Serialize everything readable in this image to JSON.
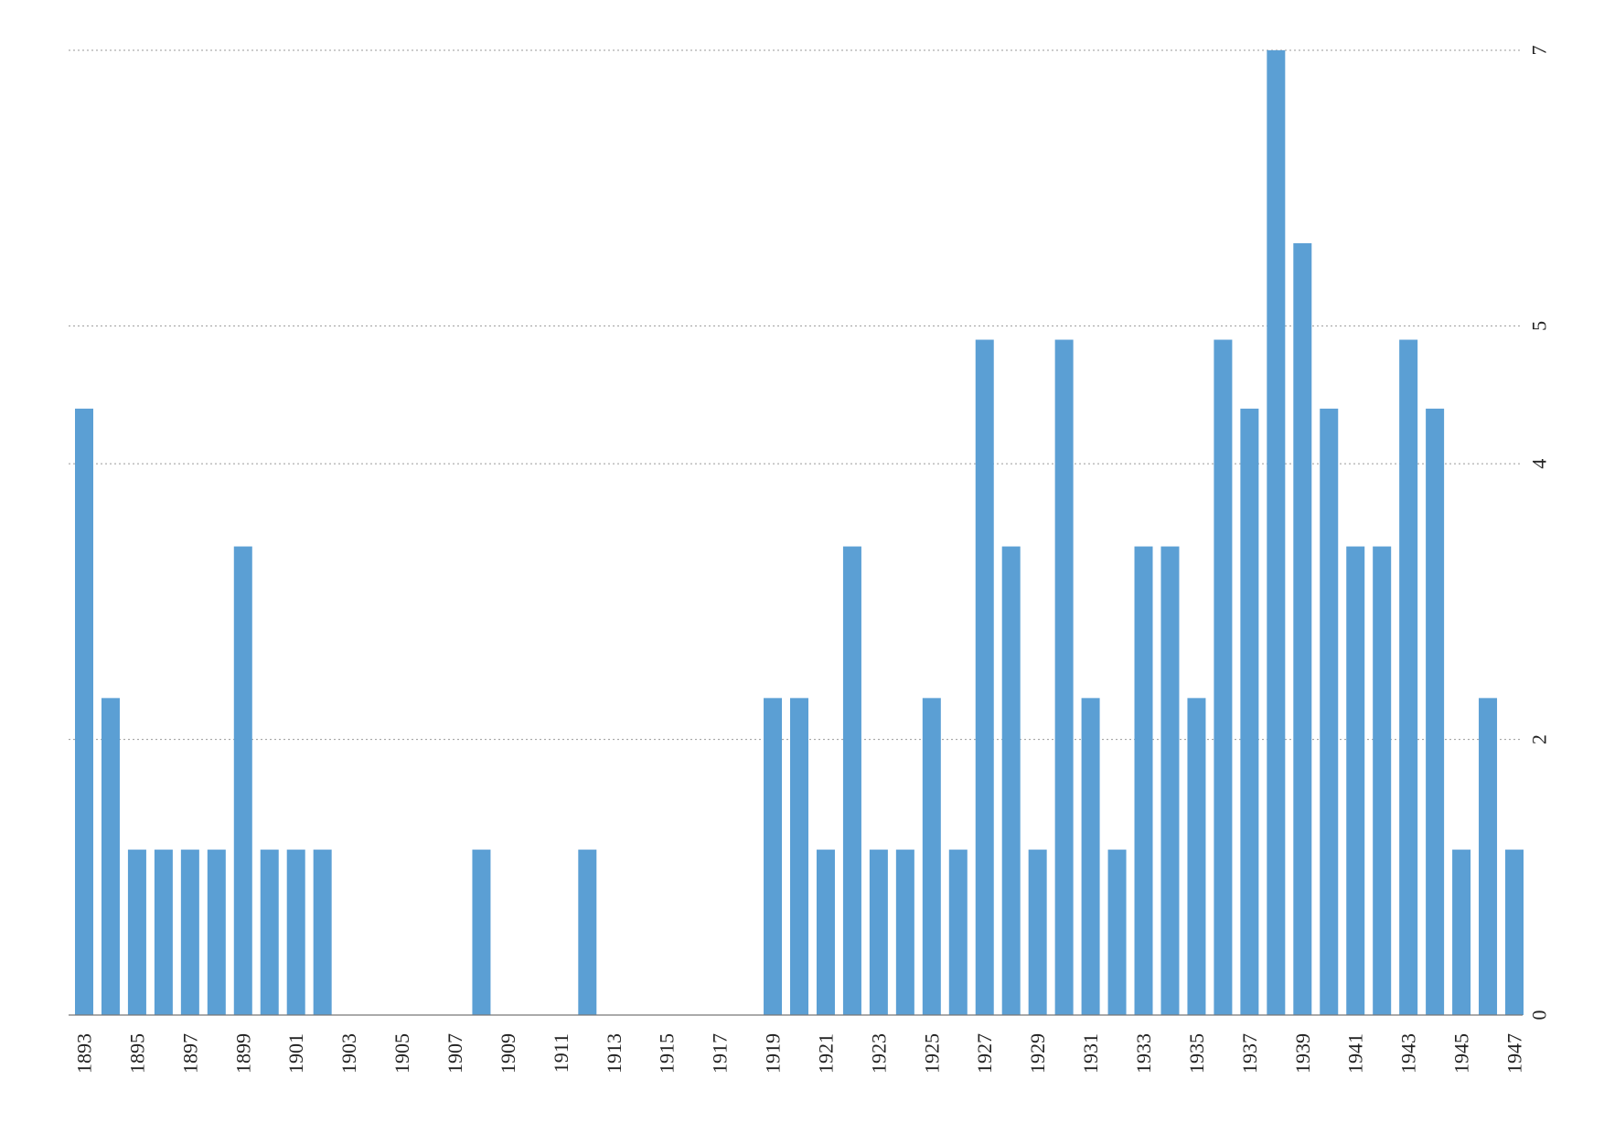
{
  "chart_data": {
    "type": "bar",
    "title": "",
    "xlabel": "",
    "ylabel": "",
    "categories": [
      1893,
      1894,
      1895,
      1896,
      1897,
      1898,
      1899,
      1900,
      1901,
      1902,
      1903,
      1904,
      1905,
      1906,
      1907,
      1908,
      1909,
      1910,
      1911,
      1912,
      1913,
      1914,
      1915,
      1916,
      1917,
      1918,
      1919,
      1920,
      1921,
      1922,
      1923,
      1924,
      1925,
      1926,
      1927,
      1928,
      1929,
      1930,
      1931,
      1932,
      1933,
      1934,
      1935,
      1936,
      1937,
      1938,
      1939,
      1940,
      1941,
      1942,
      1943,
      1944,
      1945,
      1946,
      1947
    ],
    "x_tick_labels": [
      "1893",
      "1895",
      "1897",
      "1899",
      "1901",
      "1903",
      "1905",
      "1907",
      "1909",
      "1911",
      "1913",
      "1915",
      "1917",
      "1919",
      "1921",
      "1923",
      "1925",
      "1927",
      "1929",
      "1931",
      "1933",
      "1935",
      "1937",
      "1939",
      "1941",
      "1943",
      "1945",
      "1947"
    ],
    "values": [
      4.4,
      2.3,
      1.2,
      1.2,
      1.2,
      1.2,
      3.4,
      1.2,
      1.2,
      1.2,
      0,
      0,
      0,
      0,
      0,
      1.2,
      0,
      0,
      0,
      1.2,
      0,
      0,
      0,
      0,
      0,
      0,
      2.3,
      2.3,
      1.2,
      3.4,
      1.2,
      1.2,
      2.3,
      1.2,
      4.9,
      3.4,
      1.2,
      4.9,
      2.3,
      1.2,
      3.4,
      3.4,
      2.3,
      4.9,
      4.4,
      7,
      5.6,
      4.4,
      3.4,
      3.4,
      4.9,
      4.4,
      1.2,
      2.3,
      1.2
    ],
    "y_tick_labels": [
      "0",
      "2",
      "4",
      "5",
      "7"
    ],
    "ylim": [
      0,
      7
    ],
    "y_axis_side": "right",
    "grid": true,
    "bar_color": "#5b9fd4"
  }
}
